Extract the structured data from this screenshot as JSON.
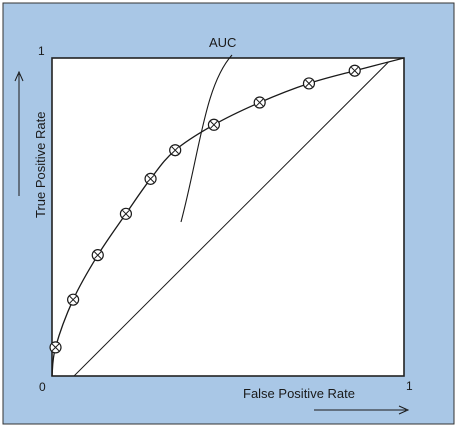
{
  "diagram": {
    "curve_label": "AUC",
    "x_axis_label": "False Positive Rate",
    "y_axis_label": "True Positive Rate",
    "origin_label": "0",
    "x_max_label": "1",
    "y_max_label": "1"
  },
  "colors": {
    "panel_background": "#a9c7e6",
    "plot_background": "#ffffff",
    "line": "#1a1a1a",
    "frame": "#222222"
  },
  "curve_data": {
    "type": "roc",
    "x": [
      0.0,
      0.01,
      0.06,
      0.13,
      0.21,
      0.28,
      0.35,
      0.46,
      0.59,
      0.73,
      0.86,
      1.0
    ],
    "y": [
      0.0,
      0.09,
      0.24,
      0.38,
      0.51,
      0.62,
      0.71,
      0.79,
      0.86,
      0.92,
      0.96,
      1.0
    ],
    "markers": [
      {
        "x": 0.01,
        "y": 0.09
      },
      {
        "x": 0.06,
        "y": 0.24
      },
      {
        "x": 0.13,
        "y": 0.38
      },
      {
        "x": 0.21,
        "y": 0.51
      },
      {
        "x": 0.28,
        "y": 0.62
      },
      {
        "x": 0.35,
        "y": 0.71
      },
      {
        "x": 0.46,
        "y": 0.79
      },
      {
        "x": 0.59,
        "y": 0.86
      },
      {
        "x": 0.73,
        "y": 0.92
      },
      {
        "x": 0.86,
        "y": 0.96
      }
    ],
    "area_under_curve_hatched": true,
    "xlim": [
      0,
      1
    ],
    "ylim": [
      0,
      1
    ]
  }
}
